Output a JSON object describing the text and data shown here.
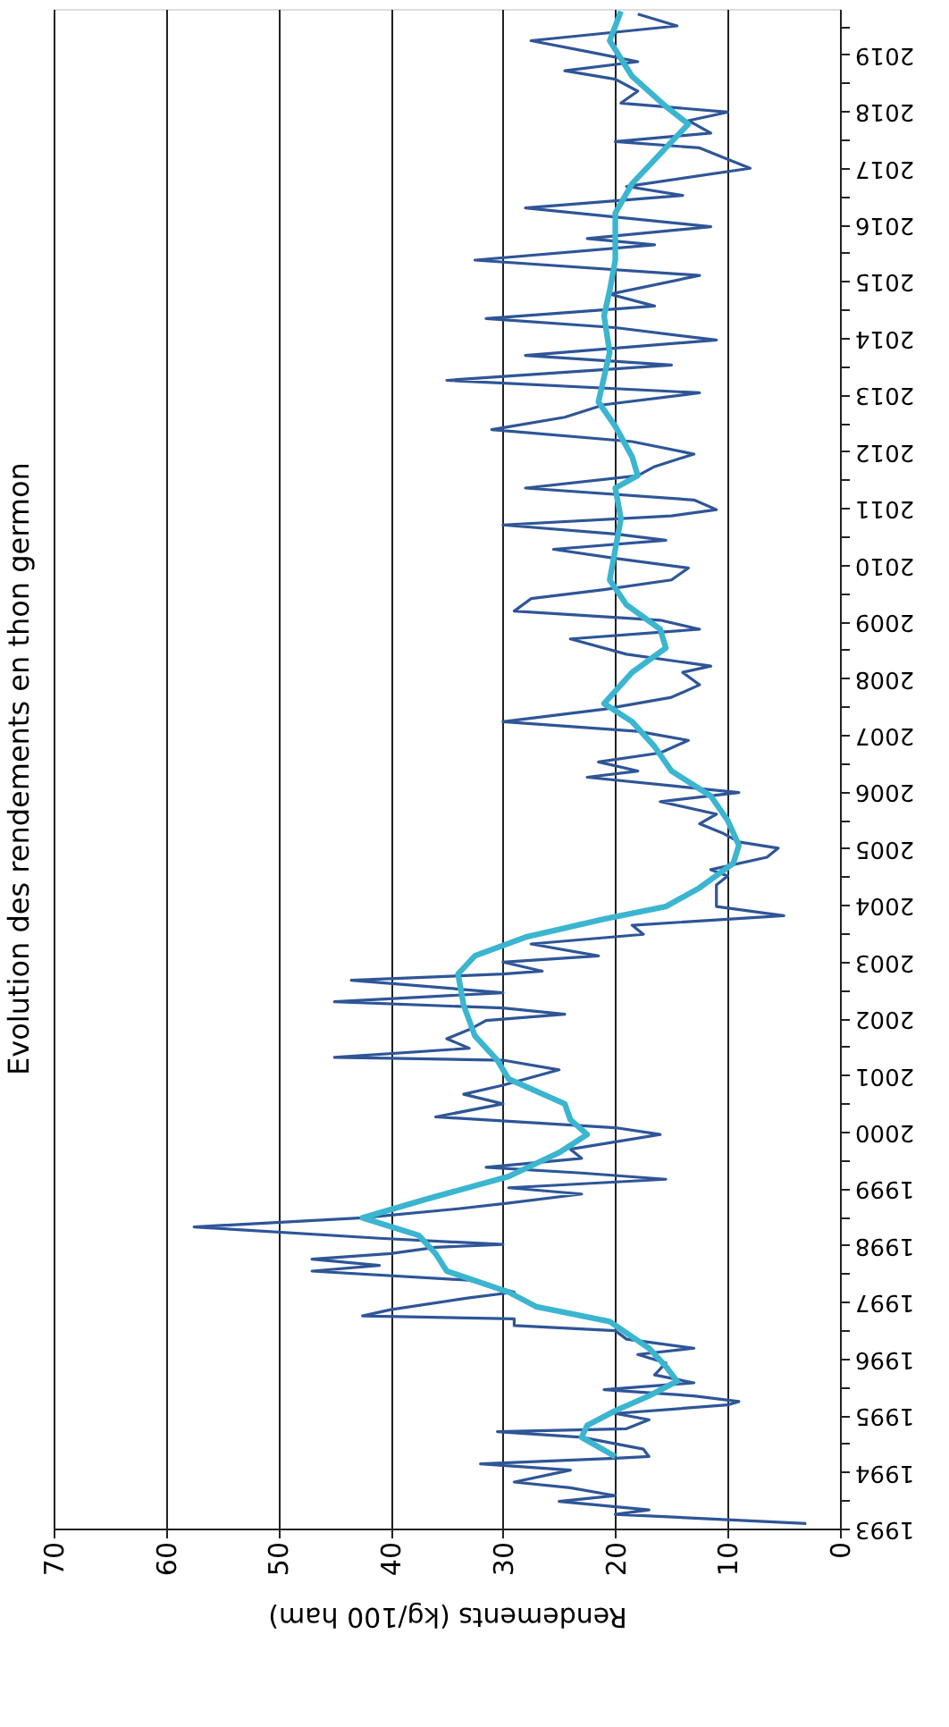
{
  "chart_data": {
    "type": "line",
    "orientation": "horizontal",
    "title": "Evolution des rendements en thon germon",
    "xlabel": "Rendements (kg/100 ham)",
    "xlim": [
      70,
      0
    ],
    "xticks": [
      70,
      60,
      50,
      40,
      30,
      20,
      10,
      0
    ],
    "ylim": [
      1993,
      2019.8
    ],
    "yticks": [
      1993,
      {
        "value": 1993.5,
        "label": null
      },
      1994,
      {
        "value": 1994.5,
        "label": null
      },
      1995,
      {
        "value": 1995.5,
        "label": null
      },
      1996,
      {
        "value": 1996.5,
        "label": null
      },
      1997,
      {
        "value": 1997.5,
        "label": null
      },
      1998,
      {
        "value": 1998.5,
        "label": null
      },
      1999,
      {
        "value": 1999.5,
        "label": null
      },
      2000,
      {
        "value": 2000.5,
        "label": null
      },
      2001,
      {
        "value": 2001.5,
        "label": null
      },
      2002,
      {
        "value": 2002.5,
        "label": null
      },
      2003,
      {
        "value": 2003.5,
        "label": null
      },
      2004,
      {
        "value": 2004.5,
        "label": null
      },
      2005,
      {
        "value": 2005.5,
        "label": null
      },
      2006,
      {
        "value": 2006.5,
        "label": null
      },
      2007,
      {
        "value": 2007.5,
        "label": null
      },
      2008,
      {
        "value": 2008.5,
        "label": null
      },
      2009,
      {
        "value": 2009.5,
        "label": null
      },
      2010,
      {
        "value": 2010.5,
        "label": null
      },
      2011,
      {
        "value": 2011.5,
        "label": null
      },
      2012,
      {
        "value": 2012.5,
        "label": null
      },
      2013,
      {
        "value": 2013.5,
        "label": null
      },
      2014,
      {
        "value": 2014.5,
        "label": null
      },
      2015,
      {
        "value": 2015.5,
        "label": null
      },
      2016,
      {
        "value": 2016.5,
        "label": null
      },
      2017,
      {
        "value": 2017.5,
        "label": null
      },
      2018,
      {
        "value": 2018.5,
        "label": null
      },
      2019,
      {
        "value": 2019.5,
        "label": null
      }
    ],
    "grid": "x",
    "marker": "none",
    "series": [
      {
        "color": "#2f5597",
        "x": [
          1993.09,
          1993.25,
          1993.33,
          1993.48,
          1993.58,
          1993.72,
          1993.82,
          1994.03,
          1994.14,
          1994.24,
          1994.27,
          1994.4,
          1994.61,
          1994.71,
          1994.76,
          1994.92,
          1995.03,
          1995.18,
          1995.24,
          1995.34,
          1995.45,
          1995.57,
          1995.71,
          1995.92,
          1996.07,
          1996.18,
          1996.34,
          1996.49,
          1996.58,
          1996.7,
          1996.75,
          1996.86,
          1997.07,
          1997.17,
          1997.38,
          1997.54,
          1997.64,
          1997.75,
          1997.85,
          1997.96,
          1998.01,
          1998.12,
          1998.32,
          1998.48,
          1998.64,
          1998.74,
          1998.9,
          1999.01,
          1999.16,
          1999.27,
          1999.37,
          1999.53,
          1999.69,
          1999.95,
          2000.07,
          2000.26,
          2000.49,
          2000.66,
          2000.82,
          2001.09,
          2001.26,
          2001.31,
          2001.47,
          2001.64,
          2001.8,
          2001.96,
          2002.07,
          2002.18,
          2002.29,
          2002.45,
          2002.67,
          2002.78,
          2002.83,
          2002.99,
          2003.1,
          2003.31,
          2003.48,
          2003.64,
          2003.81,
          2003.97,
          2004.19,
          2004.35,
          2004.51,
          2004.62,
          2004.84,
          2005.0,
          2005.11,
          2005.27,
          2005.43,
          2005.6,
          2005.82,
          2005.98,
          2006.09,
          2006.25,
          2006.36,
          2006.52,
          2006.68,
          2006.9,
          2007.06,
          2007.23,
          2007.45,
          2007.66,
          2007.88,
          2008.1,
          2008.21,
          2008.42,
          2008.69,
          2008.86,
          2009.02,
          2009.18,
          2009.4,
          2009.56,
          2009.73,
          2009.94,
          2010.11,
          2010.27,
          2010.43,
          2010.54,
          2010.7,
          2010.86,
          2010.97,
          2011.14,
          2011.35,
          2011.57,
          2011.73,
          2011.95,
          2012.17,
          2012.38,
          2012.6,
          2012.82,
          2013.03,
          2013.25,
          2013.52,
          2013.69,
          2013.96,
          2014.18,
          2014.34,
          2014.56,
          2014.77,
          2015.1,
          2015.37,
          2015.64,
          2015.75,
          2015.96,
          2016.29,
          2016.51,
          2016.67,
          2016.99,
          2017.35,
          2017.46,
          2017.61,
          2017.83,
          2017.98,
          2018.14,
          2018.35,
          2018.56,
          2018.71,
          2018.87,
          2019.03,
          2019.24,
          2019.5,
          2019.71
        ],
        "values": [
          3,
          20,
          17,
          25,
          20,
          24,
          29,
          24,
          32,
          20,
          17,
          17.5,
          23,
          30.5,
          19,
          17,
          20,
          10,
          9,
          13,
          21,
          13,
          16.5,
          15.5,
          18,
          13,
          19,
          20,
          29,
          29,
          42.5,
          40,
          33,
          29,
          33,
          47,
          41,
          47,
          40,
          36,
          30,
          41,
          57.5,
          42.5,
          34,
          29.5,
          23,
          29.5,
          15.5,
          23,
          31.5,
          23,
          24,
          16,
          20,
          36,
          30,
          33.5,
          30,
          25,
          30,
          45,
          33,
          35,
          33,
          31.5,
          24.5,
          30,
          45,
          30,
          43.5,
          30,
          26.5,
          30,
          21.5,
          27.5,
          17.5,
          18.5,
          5,
          11,
          11,
          11,
          10,
          11.5,
          6.5,
          5.5,
          9,
          10.5,
          12.5,
          11,
          16,
          9,
          14.5,
          22.5,
          18,
          21.5,
          16,
          13.5,
          18,
          30,
          21,
          15,
          12.5,
          14,
          11.5,
          19,
          24,
          12.5,
          16,
          29,
          27.5,
          21,
          15,
          13.5,
          20,
          25.5,
          15.5,
          20,
          30,
          15,
          11,
          13,
          28,
          18,
          16.5,
          13,
          18.5,
          31,
          24.5,
          21,
          12.5,
          35,
          15,
          28,
          11,
          20,
          31.5,
          16.5,
          20.5,
          12.5,
          32.5,
          16.5,
          22.5,
          11.5,
          28,
          14,
          19,
          8,
          12.5,
          20,
          11.5,
          13.5,
          10,
          19.5,
          18,
          20,
          24.5,
          18,
          22,
          27.5,
          14.5,
          18
        ]
      },
      {
        "color": "#3bb5d0",
        "x": [
          1994.27,
          1994.61,
          1994.82,
          1995.08,
          1995.34,
          1995.6,
          1995.86,
          1996.18,
          1996.65,
          1996.91,
          1997.17,
          1997.54,
          1997.85,
          1998.17,
          1998.48,
          1998.8,
          1999.21,
          1999.63,
          1999.95,
          2000.21,
          2000.49,
          2000.93,
          2001.26,
          2001.69,
          2002.23,
          2002.78,
          2003.1,
          2003.43,
          2003.75,
          2003.97,
          2004.3,
          2004.73,
          2005.05,
          2005.49,
          2005.92,
          2006.36,
          2006.79,
          2007.23,
          2007.55,
          2008.1,
          2008.53,
          2008.86,
          2009.29,
          2009.73,
          2010.27,
          2010.81,
          2011.35,
          2011.57,
          2011.9,
          2012.44,
          2012.87,
          2013.31,
          2013.74,
          2014.39,
          2014.83,
          2015.37,
          2015.91,
          2016.2,
          2016.72,
          2017.35,
          2017.77,
          2018.08,
          2018.61,
          2019.24,
          2019.76
        ],
        "values": [
          20,
          23,
          22.5,
          20,
          17,
          14.5,
          15.5,
          17,
          20.5,
          27,
          29.5,
          35,
          36,
          37.5,
          42.5,
          37,
          29.5,
          25,
          22.5,
          24,
          24.5,
          29.5,
          30.5,
          32.5,
          33.5,
          34,
          32.5,
          28,
          21,
          15.5,
          12.5,
          9.5,
          9,
          10,
          11.5,
          15,
          16.5,
          18.5,
          21,
          18.5,
          15.5,
          16,
          19,
          20.5,
          20,
          19.5,
          20,
          18,
          18.5,
          20,
          21.5,
          21,
          20.5,
          21,
          20.5,
          20,
          20,
          20,
          18.5,
          15.5,
          13.5,
          15.5,
          18.5,
          20.5,
          19.5
        ]
      }
    ]
  }
}
